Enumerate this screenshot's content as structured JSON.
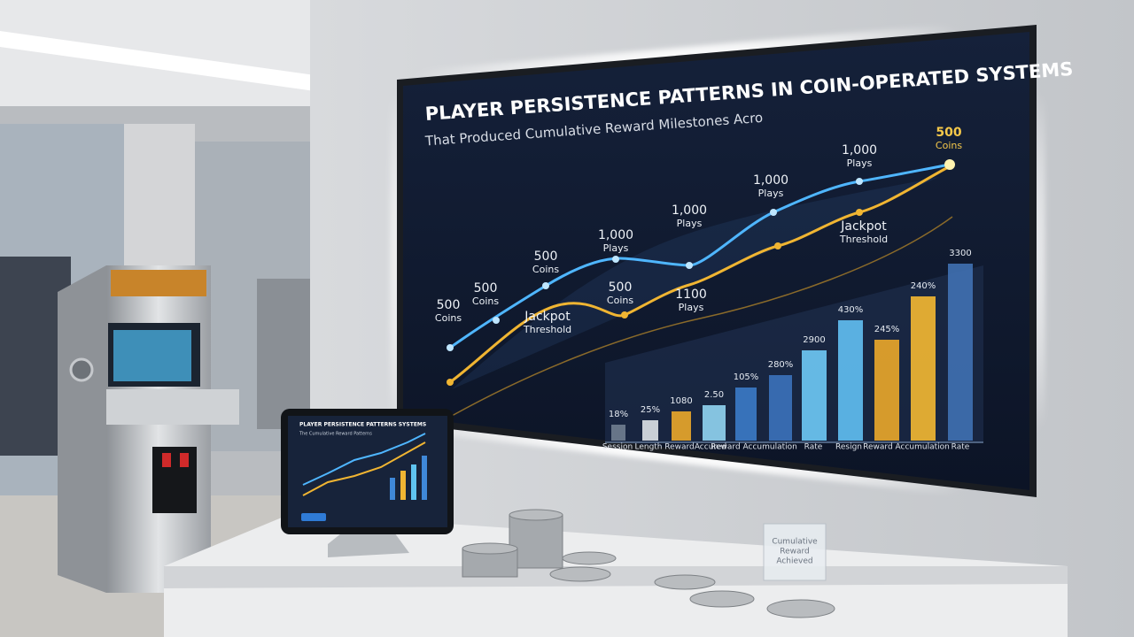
{
  "screen": {
    "title": "PLAYER PERSISTENCE PATTERNS IN COIN-OPERATED SYSTEMS",
    "subtitle": "That Produced Cumulative Reward Milestones Acro",
    "annotations": [
      [
        "500",
        "Coins"
      ],
      [
        "500",
        "Coins"
      ],
      [
        "500",
        "Coins"
      ],
      [
        "1,000",
        "Plays"
      ],
      [
        "Jackpot",
        "Threshold"
      ],
      [
        "500",
        "Coins"
      ],
      [
        "1,000",
        "Plays"
      ],
      [
        "1100",
        "Plays"
      ],
      [
        "1,000",
        "Plays"
      ],
      [
        "1,000",
        "Plays"
      ],
      [
        "500",
        "Coins"
      ],
      [
        "Jackpot",
        "Threshold"
      ]
    ],
    "bar_labels": [
      "18%",
      "25%",
      "1080",
      "2.50",
      "105%",
      "280%",
      "2900",
      "430%",
      "245%",
      "240%",
      "3300"
    ],
    "axis_labels": [
      "Session",
      "Length",
      "Reward",
      "Accured",
      "Reward Accumulation",
      "Rate",
      "Resign",
      "Reward Accumulation",
      "Rate"
    ]
  },
  "tablet": {
    "title": "PLAYER PERSISTENCE PATTERNS SYSTEMS",
    "subtitle": "The Cumulative Reward Patterns"
  },
  "plaque": [
    "Cumulative",
    "Reward",
    "Achieved"
  ]
}
